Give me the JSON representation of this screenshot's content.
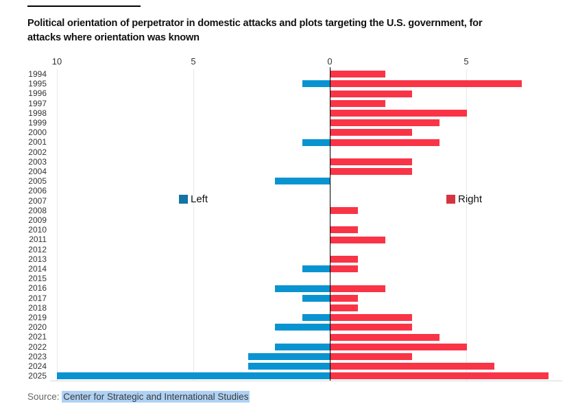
{
  "header": {
    "title_line1": "Political orientation of perpetrator in domestic attacks and plots targeting the U.S. government, for",
    "title_line2": "attacks where orientation was known"
  },
  "chart_data": {
    "type": "bar",
    "variant": "diverging-horizontal",
    "title": "Political orientation of perpetrator in domestic attacks and plots targeting the U.S. government, for attacks where orientation was known",
    "categories": [
      "1994",
      "1995",
      "1996",
      "1997",
      "1998",
      "1999",
      "2000",
      "2001",
      "2002",
      "2003",
      "2004",
      "2005",
      "2006",
      "2007",
      "2008",
      "2009",
      "2010",
      "2011",
      "2012",
      "2013",
      "2014",
      "2015",
      "2016",
      "2017",
      "2018",
      "2019",
      "2020",
      "2021",
      "2022",
      "2023",
      "2024",
      "2025"
    ],
    "series": [
      {
        "name": "Left",
        "direction": "left",
        "color": "#0994d1",
        "values": [
          0,
          1,
          0,
          0,
          0,
          0,
          0,
          1,
          0,
          0,
          0,
          2,
          0,
          0,
          0,
          0,
          0,
          0,
          0,
          0,
          1,
          0,
          2,
          1,
          0,
          1,
          2,
          0,
          2,
          3,
          3,
          10
        ]
      },
      {
        "name": "Right",
        "direction": "right",
        "color": "#f93446",
        "values": [
          2,
          7,
          3,
          2,
          5,
          4,
          3,
          4,
          0,
          3,
          3,
          0,
          0,
          0,
          1,
          0,
          1,
          2,
          0,
          1,
          1,
          0,
          2,
          1,
          1,
          3,
          3,
          4,
          5,
          3,
          6,
          8
        ]
      }
    ],
    "x_axis": {
      "ticks": [
        {
          "label": "10",
          "value": -10
        },
        {
          "label": "5",
          "value": -5
        },
        {
          "label": "0",
          "value": 0
        },
        {
          "label": "5",
          "value": 5
        }
      ],
      "xlim": [
        -10.3,
        8.5
      ],
      "grid": true
    },
    "legend_position": "inside-middle"
  },
  "legend": {
    "left_label": "Left",
    "left_color": "#1374a6",
    "right_label": "Right",
    "right_color": "#d63441"
  },
  "source": {
    "label": "Source: ",
    "text": "Center for Strategic and International Studies",
    "highlight_color": "#aed1f4"
  }
}
